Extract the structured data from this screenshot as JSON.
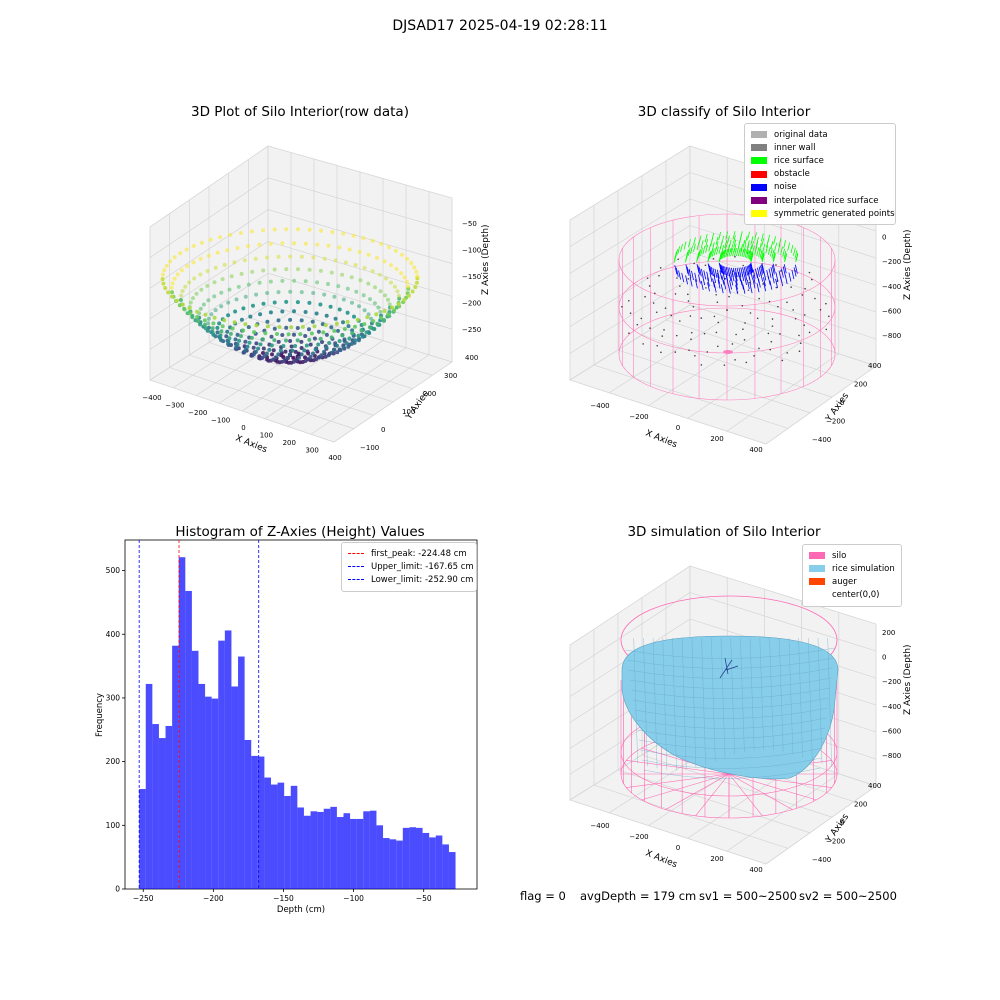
{
  "figure": {
    "suptitle": "DJSAD17 2025-04-19 02:28:11",
    "footer": {
      "flag": "flag = 0",
      "avg_depth": "avgDepth = 179 cm",
      "sv1": "sv1 = 500~2500",
      "sv2": "sv2 = 500~2500"
    }
  },
  "panels": {
    "raw": {
      "title": "3D Plot of Silo Interior(row data)",
      "xlabel": "X Axies",
      "ylabel": "Y Axies",
      "zlabel": "Z Axies (Depth)",
      "xticks": [
        "-400",
        "-300",
        "-200",
        "-100",
        "0",
        "100",
        "200",
        "300",
        "400"
      ],
      "yticks": [
        "-100",
        "0",
        "100",
        "200",
        "300",
        "400"
      ],
      "zticks": [
        "-50",
        "-100",
        "-150",
        "-200",
        "-250"
      ],
      "colormap": "viridis"
    },
    "classify": {
      "title": "3D classify of Silo Interior",
      "xlabel": "X Axies",
      "ylabel": "Y Axies",
      "zlabel": "Z Axies (Depth)",
      "xticks": [
        "-400",
        "-200",
        "0",
        "200",
        "400"
      ],
      "yticks": [
        "-400",
        "-200",
        "0",
        "200",
        "400"
      ],
      "zticks": [
        "200",
        "0",
        "-200",
        "-400",
        "-600",
        "-800"
      ],
      "legend": [
        {
          "label": "original data",
          "color": "#b0b0b0"
        },
        {
          "label": "inner wall",
          "color": "#808080"
        },
        {
          "label": "rice surface",
          "color": "#00ff00"
        },
        {
          "label": "obstacle",
          "color": "#ff0000"
        },
        {
          "label": "noise",
          "color": "#0000ff"
        },
        {
          "label": "interpolated rice surface",
          "color": "#800080"
        },
        {
          "label": "symmetric generated points",
          "color": "#ffff00"
        }
      ]
    },
    "simulation": {
      "title": "3D simulation of Silo Interior",
      "xlabel": "X Axies",
      "ylabel": "Y Axies",
      "zlabel": "Z Axies (Depth)",
      "xticks": [
        "-400",
        "-200",
        "0",
        "200",
        "400"
      ],
      "yticks": [
        "-400",
        "-200",
        "0",
        "200",
        "400"
      ],
      "zticks": [
        "200",
        "0",
        "-200",
        "-400",
        "-600",
        "-800"
      ],
      "legend": [
        {
          "label": "silo",
          "color": "#ff69b4"
        },
        {
          "label": "rice simulation",
          "color": "#87ceeb"
        },
        {
          "label": "auger",
          "color": "#ff4500"
        },
        {
          "label": "center(0,0)",
          "color": ""
        }
      ]
    }
  },
  "chart_data": {
    "type": "bar",
    "title": "Histogram of Z-Axies (Height) Values",
    "xlabel": "Depth (cm)",
    "ylabel": "Frequency",
    "xlim": [
      -263,
      -12
    ],
    "ylim": [
      0,
      548
    ],
    "xticks": [
      -250,
      -200,
      -150,
      -100,
      -50
    ],
    "yticks": [
      0,
      100,
      200,
      300,
      400,
      500
    ],
    "bar_color": "#0000ff",
    "bin_start": -252.9,
    "bin_width": 4.7,
    "values": [
      157,
      322,
      259,
      237,
      256,
      382,
      521,
      468,
      374,
      322,
      302,
      299,
      390,
      406,
      318,
      365,
      234,
      209,
      208,
      175,
      164,
      167,
      146,
      162,
      128,
      115,
      122,
      121,
      126,
      129,
      113,
      119,
      110,
      110,
      122,
      123,
      100,
      80,
      78,
      76,
      96,
      97,
      96,
      88,
      81,
      84,
      70,
      58
    ],
    "vlines": [
      {
        "label": "first_peak: -224.48 cm",
        "x": -224.48,
        "color": "#ff0000"
      },
      {
        "label": "Upper_limit: -167.65 cm",
        "x": -167.65,
        "color": "#0000ff"
      },
      {
        "label": "Lower_limit: -252.90 cm",
        "x": -252.9,
        "color": "#0000ff"
      }
    ],
    "legend_position": "upper right"
  }
}
